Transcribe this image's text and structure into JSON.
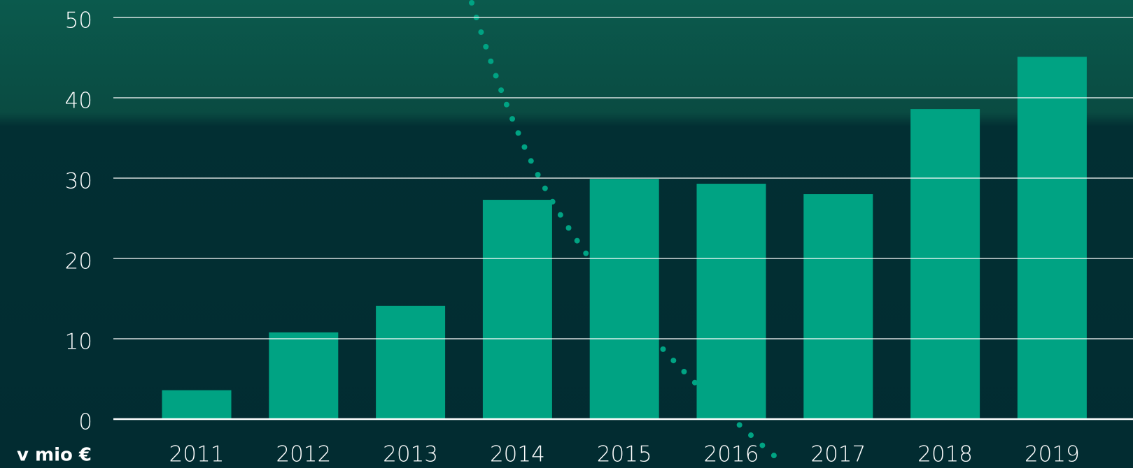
{
  "chart_data": {
    "type": "bar",
    "unit_label": "v mio €",
    "categories": [
      "2011",
      "2012",
      "2013",
      "2014",
      "2015",
      "2016",
      "2017",
      "2018",
      "2019"
    ],
    "values": [
      3.6,
      10.8,
      14.1,
      27.3,
      29.9,
      29.3,
      28.0,
      38.6,
      45.1
    ],
    "color": "#00a383",
    "ylim": [
      0,
      50
    ],
    "yticks": [
      0,
      10,
      20,
      30,
      40,
      50
    ],
    "grid": true
  }
}
